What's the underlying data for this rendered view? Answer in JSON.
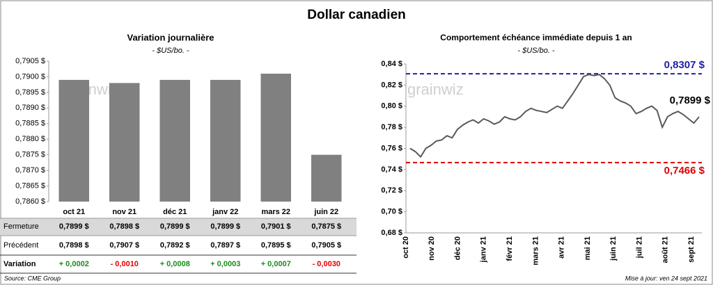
{
  "title": "Dollar canadien",
  "watermark": "grainwiz",
  "footer": {
    "source": "Source: CME Group",
    "updated": "Mise à jour: ven 24 sept 2021"
  },
  "chart_data": [
    {
      "type": "bar",
      "title": "Variation  journalière",
      "subtitle": "- $US/bo. -",
      "categories": [
        "oct 21",
        "nov 21",
        "déc 21",
        "janv 22",
        "mars 22",
        "juin 22"
      ],
      "values": [
        0.7899,
        0.7898,
        0.7899,
        0.7899,
        0.7901,
        0.7875
      ],
      "color": "#808080",
      "ylim": [
        0.786,
        0.7905
      ],
      "yticks": [
        {
          "value": 0.786,
          "label": "0,7860 $"
        },
        {
          "value": 0.7865,
          "label": "0,7865 $"
        },
        {
          "value": 0.787,
          "label": "0,7870 $"
        },
        {
          "value": 0.7875,
          "label": "0,7875 $"
        },
        {
          "value": 0.788,
          "label": "0,7880 $"
        },
        {
          "value": 0.7885,
          "label": "0,7885 $"
        },
        {
          "value": 0.789,
          "label": "0,7890 $"
        },
        {
          "value": 0.7895,
          "label": "0,7895 $"
        },
        {
          "value": 0.79,
          "label": "0,7900 $"
        },
        {
          "value": 0.7905,
          "label": "0,7905 $"
        }
      ]
    },
    {
      "type": "line",
      "title": "Comportement échéance immédiate depuis 1 an",
      "subtitle": "- $US/bo. -",
      "x_labels": [
        "oct 20",
        "nov 20",
        "déc 20",
        "janv 21",
        "févr 21",
        "mars 21",
        "avr 21",
        "mai 21",
        "juin 21",
        "juil 21",
        "août 21",
        "sept 21"
      ],
      "series": [
        {
          "color": "#595959",
          "values": [
            0.76,
            0.757,
            0.752,
            0.76,
            0.763,
            0.767,
            0.768,
            0.772,
            0.77,
            0.778,
            0.782,
            0.785,
            0.787,
            0.784,
            0.788,
            0.786,
            0.783,
            0.785,
            0.79,
            0.788,
            0.787,
            0.79,
            0.795,
            0.798,
            0.796,
            0.795,
            0.794,
            0.797,
            0.8,
            0.798,
            0.805,
            0.812,
            0.82,
            0.828,
            0.83,
            0.829,
            0.83,
            0.826,
            0.82,
            0.808,
            0.805,
            0.803,
            0.8,
            0.793,
            0.795,
            0.798,
            0.8,
            0.796,
            0.78,
            0.79,
            0.793,
            0.795,
            0.792,
            0.788,
            0.784,
            0.7899
          ]
        }
      ],
      "ylim": [
        0.68,
        0.84
      ],
      "yticks": [
        {
          "value": 0.68,
          "label": "0,68 $"
        },
        {
          "value": 0.7,
          "label": "0,70 $"
        },
        {
          "value": 0.72,
          "label": "0,72 $"
        },
        {
          "value": 0.74,
          "label": "0,74 $"
        },
        {
          "value": 0.76,
          "label": "0,76 $"
        },
        {
          "value": 0.78,
          "label": "0,78 $"
        },
        {
          "value": 0.8,
          "label": "0,80 $"
        },
        {
          "value": 0.82,
          "label": "0,82 $"
        },
        {
          "value": 0.84,
          "label": "0,84 $"
        }
      ],
      "hlines": [
        {
          "value": 0.8307,
          "label": "0,8307 $",
          "color": "#1f1fa8"
        },
        {
          "value": 0.7466,
          "label": "0,7466 $",
          "color": "#e00000"
        }
      ],
      "last_label": {
        "value": 0.7899,
        "label": "0,7899 $"
      }
    }
  ],
  "table": {
    "rows": [
      {
        "label": "Fermeture",
        "cells": [
          "0,7899 $",
          "0,7898 $",
          "0,7899 $",
          "0,7899 $",
          "0,7901 $",
          "0,7875 $"
        ]
      },
      {
        "label": "Précédent",
        "cells": [
          "0,7898 $",
          "0,7907 $",
          "0,7892 $",
          "0,7897 $",
          "0,7895 $",
          "0,7905 $"
        ]
      },
      {
        "label": "Variation",
        "cells": [
          "+ 0,0002",
          "- 0,0010",
          "+ 0,0008",
          "+ 0,0003",
          "+ 0,0007",
          "- 0,0030"
        ],
        "colors": [
          "#1a8a1a",
          "#e00000",
          "#1a8a1a",
          "#1a8a1a",
          "#1a8a1a",
          "#e00000"
        ]
      }
    ]
  }
}
